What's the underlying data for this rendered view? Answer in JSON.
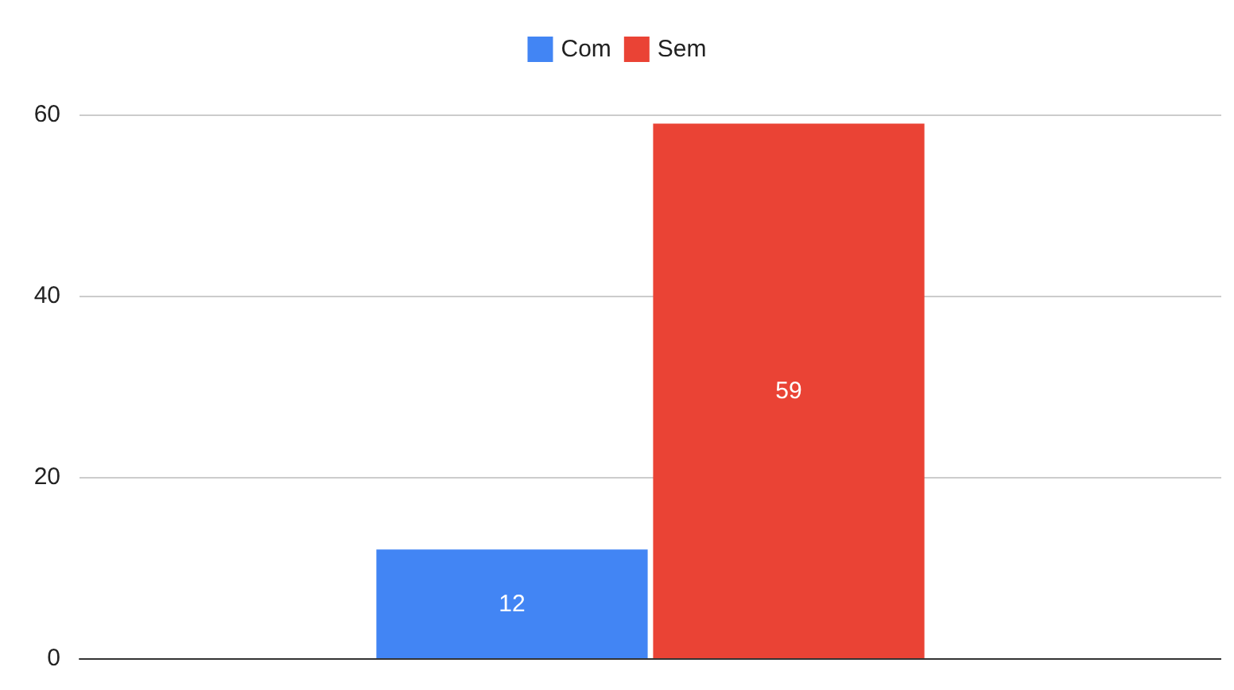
{
  "chart_data": {
    "type": "bar",
    "categories": [
      null
    ],
    "series": [
      {
        "name": "Com",
        "color": "#4285f4",
        "values": [
          12
        ]
      },
      {
        "name": "Sem",
        "color": "#ea4335",
        "values": [
          59
        ]
      }
    ],
    "ylim": [
      0,
      60
    ],
    "yticks": [
      0,
      20,
      40,
      60
    ],
    "grid": "y",
    "legend": "top",
    "data_labels": true,
    "tick_labels": "y"
  }
}
